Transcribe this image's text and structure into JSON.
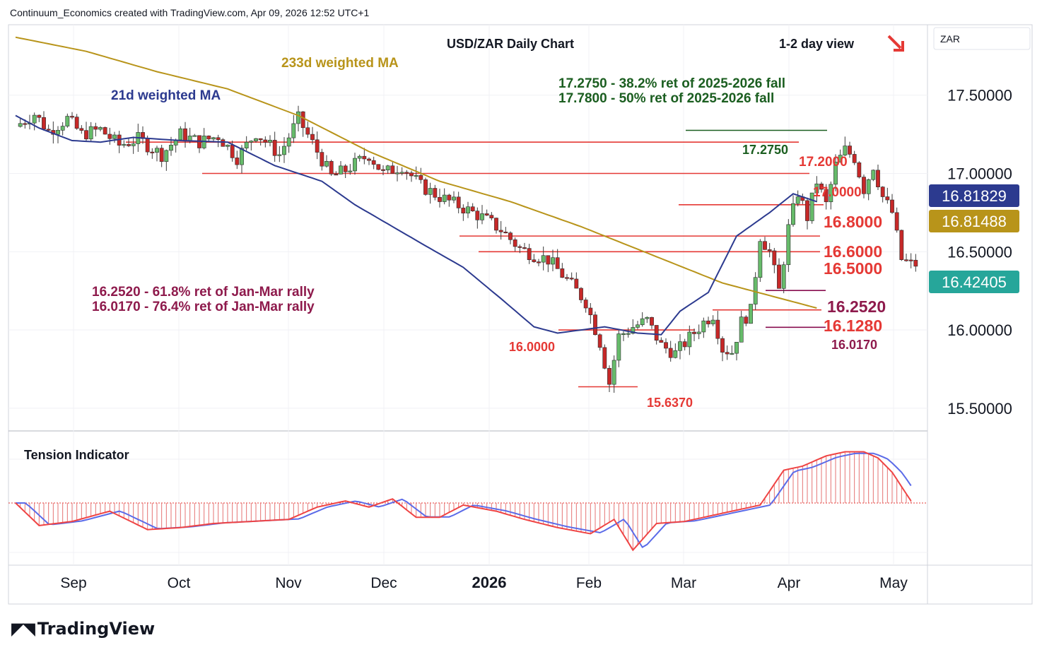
{
  "header": {
    "credit": "Continuum_Economics created with TradingView.com, Apr 09, 2026 12:52 UTC+1"
  },
  "brand": {
    "name": "TradingView",
    "icon": "tradingview-logo-icon"
  },
  "colors": {
    "bull": "#26a69a",
    "bear": "#ef5350",
    "candle_bull": "#66bb6a",
    "candle_bear": "#c62828",
    "ma21": "#2c3a8f",
    "ma233": "#b8941a",
    "level": "#e53935",
    "fib": "#880e4f",
    "fib_text": "#8e1a4c",
    "green_text": "#1b5e20",
    "axis_text": "#131722",
    "hist": "#e57373",
    "ti_red": "#ef4444",
    "ti_blue": "#5b6be8"
  },
  "chart_data": {
    "type": "candlestick",
    "title": "USD/ZAR Daily Chart",
    "view": "1-2 day view",
    "currency_label": "ZAR",
    "y_axis": {
      "range": [
        15.4,
        17.95
      ],
      "ticks": [
        17.5,
        17.0,
        16.5,
        16.0,
        15.5
      ],
      "tick_labels": [
        "17.50000",
        "17.00000",
        "16.50000",
        "16.00000",
        "15.50000"
      ]
    },
    "x_axis": {
      "labels": [
        "Sep",
        "Oct",
        "Nov",
        "Dec",
        "2026",
        "Feb",
        "Mar",
        "Apr",
        "May"
      ]
    },
    "price_tags": [
      {
        "value": 16.81829,
        "label": "16.81829",
        "color": "#2c3a8f"
      },
      {
        "value": 16.81488,
        "label": "16.81488",
        "color": "#b8941a"
      },
      {
        "value": 16.42405,
        "label": "16.42405",
        "color": "#26a69a"
      }
    ],
    "ma_labels": {
      "ma21": "21d weighted MA",
      "ma233": "233d weighted MA"
    },
    "ma21_anchor": [
      [
        0,
        17.37
      ],
      [
        5,
        17.29
      ],
      [
        12,
        17.21
      ],
      [
        18,
        17.2
      ],
      [
        25,
        17.23
      ],
      [
        35,
        17.21
      ],
      [
        45,
        17.2
      ],
      [
        55,
        17.05
      ],
      [
        65,
        16.95
      ],
      [
        72,
        16.8
      ],
      [
        80,
        16.66
      ],
      [
        88,
        16.52
      ],
      [
        95,
        16.4
      ],
      [
        103,
        16.2
      ],
      [
        110,
        16.02
      ],
      [
        115,
        15.98
      ],
      [
        125,
        16.02
      ],
      [
        132,
        15.98
      ],
      [
        137,
        15.97
      ],
      [
        141,
        16.12
      ],
      [
        147,
        16.24
      ],
      [
        153,
        16.6
      ],
      [
        160,
        16.75
      ],
      [
        165,
        16.87
      ],
      [
        170,
        16.82
      ]
    ],
    "ma233_anchor": [
      [
        0,
        17.87
      ],
      [
        15,
        17.78
      ],
      [
        30,
        17.65
      ],
      [
        45,
        17.54
      ],
      [
        60,
        17.37
      ],
      [
        75,
        17.14
      ],
      [
        90,
        16.95
      ],
      [
        105,
        16.82
      ],
      [
        120,
        16.66
      ],
      [
        135,
        16.48
      ],
      [
        150,
        16.3
      ],
      [
        160,
        16.22
      ],
      [
        170,
        16.14
      ]
    ],
    "candles_anchor": [
      [
        0,
        17.3
      ],
      [
        4,
        17.38
      ],
      [
        7,
        17.27
      ],
      [
        11,
        17.35
      ],
      [
        14,
        17.25
      ],
      [
        18,
        17.28
      ],
      [
        22,
        17.18
      ],
      [
        26,
        17.22
      ],
      [
        31,
        17.12
      ],
      [
        35,
        17.25
      ],
      [
        39,
        17.2
      ],
      [
        43,
        17.24
      ],
      [
        47,
        17.1
      ],
      [
        51,
        17.26
      ],
      [
        56,
        17.12
      ],
      [
        60,
        17.35
      ],
      [
        64,
        17.14
      ],
      [
        67,
        16.98
      ],
      [
        70,
        17.02
      ],
      [
        75,
        17.12
      ],
      [
        78,
        17.0
      ],
      [
        82,
        17.05
      ],
      [
        86,
        16.92
      ],
      [
        90,
        16.85
      ],
      [
        95,
        16.78
      ],
      [
        99,
        16.72
      ],
      [
        103,
        16.64
      ],
      [
        107,
        16.52
      ],
      [
        110,
        16.48
      ],
      [
        113,
        16.45
      ],
      [
        117,
        16.32
      ],
      [
        121,
        16.18
      ],
      [
        124,
        15.92
      ],
      [
        126,
        15.66
      ],
      [
        128,
        15.96
      ],
      [
        131,
        16.02
      ],
      [
        134,
        16.06
      ],
      [
        137,
        15.9
      ],
      [
        140,
        15.85
      ],
      [
        143,
        15.95
      ],
      [
        146,
        16.05
      ],
      [
        148,
        16.1
      ],
      [
        150,
        15.88
      ],
      [
        152,
        15.86
      ],
      [
        154,
        16.05
      ],
      [
        156,
        16.12
      ],
      [
        158,
        16.6
      ],
      [
        160,
        16.5
      ],
      [
        162,
        16.25
      ],
      [
        164,
        16.65
      ],
      [
        166,
        16.88
      ],
      [
        168,
        16.72
      ],
      [
        170,
        16.95
      ],
      [
        172,
        16.8
      ],
      [
        174,
        17.05
      ],
      [
        176,
        17.15
      ],
      [
        178,
        17.1
      ],
      [
        180,
        16.9
      ],
      [
        182,
        17.05
      ],
      [
        184,
        16.85
      ],
      [
        186,
        16.75
      ],
      [
        188,
        16.45
      ],
      [
        190,
        16.42
      ]
    ],
    "levels": [
      {
        "value": 17.275,
        "label": "17.2750",
        "color": "#1b5e20"
      },
      {
        "value": 17.2,
        "label": "17.2000",
        "color": "#e53935"
      },
      {
        "value": 17.0,
        "label": "17.0000",
        "color": "#e53935"
      },
      {
        "value": 16.8,
        "label": "16.8000",
        "color": "#e53935"
      },
      {
        "value": 16.6,
        "label": "16.6000",
        "color": "#e53935"
      },
      {
        "value": 16.5,
        "label": "16.5000",
        "color": "#e53935"
      },
      {
        "value": 16.252,
        "label": "16.2520",
        "color": "#880e4f"
      },
      {
        "value": 16.128,
        "label": "16.1280",
        "color": "#e53935"
      },
      {
        "value": 16.017,
        "label": "16.0170",
        "color": "#880e4f"
      },
      {
        "value": 16.0,
        "label": "16.0000",
        "color": "#e53935"
      },
      {
        "value": 15.637,
        "label": "15.6370",
        "color": "#e53935"
      }
    ],
    "annotations": {
      "fib_green": [
        "17.2750 - 38.2% ret of 2025-2026 fall",
        "17.7800 - 50% ret of 2025-2026 fall"
      ],
      "fib_purple": [
        "16.2520 - 61.8% ret of Jan-Mar rally",
        "16.0170 - 76.4% ret of Jan-Mar rally"
      ]
    },
    "direction_icon": "arrow-down-right-icon",
    "tension_indicator": {
      "title": "Tension Indicator",
      "anchor": [
        [
          0,
          0.0
        ],
        [
          5,
          -0.55
        ],
        [
          12,
          -0.45
        ],
        [
          20,
          -0.2
        ],
        [
          28,
          -0.65
        ],
        [
          35,
          -0.6
        ],
        [
          42,
          -0.5
        ],
        [
          50,
          -0.45
        ],
        [
          58,
          -0.4
        ],
        [
          64,
          -0.1
        ],
        [
          70,
          0.05
        ],
        [
          75,
          -0.1
        ],
        [
          80,
          0.1
        ],
        [
          85,
          -0.35
        ],
        [
          90,
          -0.35
        ],
        [
          95,
          -0.05
        ],
        [
          102,
          -0.2
        ],
        [
          108,
          -0.4
        ],
        [
          115,
          -0.6
        ],
        [
          122,
          -0.75
        ],
        [
          127,
          -0.4
        ],
        [
          131,
          -1.15
        ],
        [
          136,
          -0.5
        ],
        [
          142,
          -0.45
        ],
        [
          150,
          -0.25
        ],
        [
          158,
          -0.05
        ],
        [
          163,
          0.8
        ],
        [
          167,
          0.9
        ],
        [
          172,
          1.15
        ],
        [
          176,
          1.25
        ],
        [
          180,
          1.25
        ],
        [
          183,
          1.1
        ],
        [
          186,
          0.75
        ],
        [
          190,
          0.05
        ]
      ]
    }
  }
}
